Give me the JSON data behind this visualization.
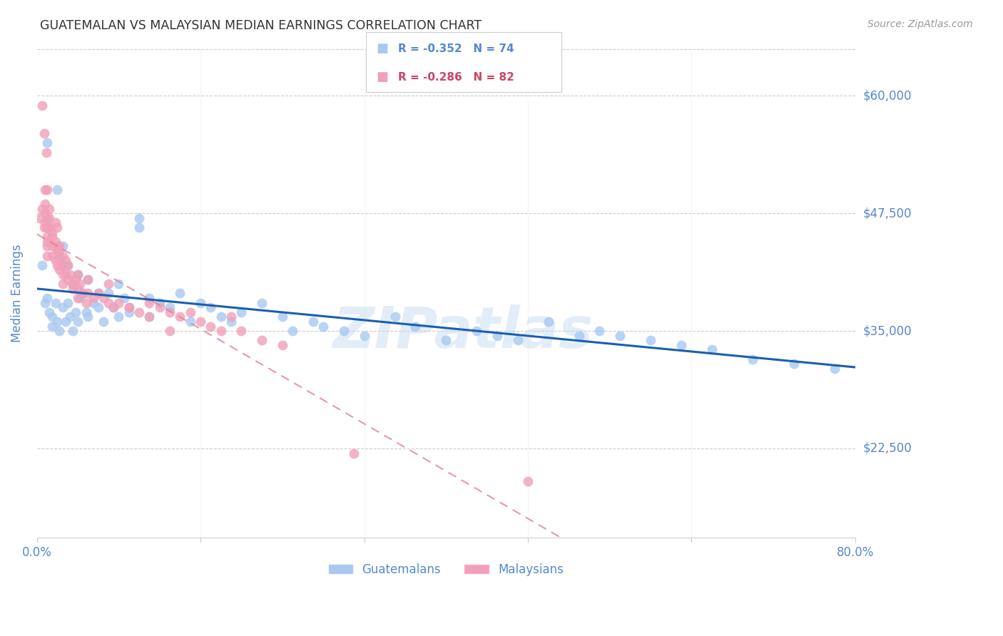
{
  "title": "GUATEMALAN VS MALAYSIAN MEDIAN EARNINGS CORRELATION CHART",
  "source": "Source: ZipAtlas.com",
  "ylabel": "Median Earnings",
  "xlim": [
    0.0,
    0.8
  ],
  "ylim": [
    13000,
    65000
  ],
  "yticks": [
    22500,
    35000,
    47500,
    60000
  ],
  "ytick_labels": [
    "$22,500",
    "$35,000",
    "$47,500",
    "$60,000"
  ],
  "xtick_positions": [
    0.0,
    0.16,
    0.32,
    0.48,
    0.64,
    0.8
  ],
  "xtick_labels": [
    "0.0%",
    "",
    "",
    "",
    "",
    "80.0%"
  ],
  "blue_color": "#A8C8F0",
  "pink_color": "#F0A0B8",
  "line_blue": "#1A5FB0",
  "line_pink": "#E08090",
  "axis_label_color": "#5588CC",
  "grid_color": "#CCCCCC",
  "watermark": "ZIPatlas",
  "legend_r_blue": "R = -0.352",
  "legend_n_blue": "N = 74",
  "legend_r_pink": "R = -0.286",
  "legend_n_pink": "N = 82",
  "guatemalan_x": [
    0.005,
    0.008,
    0.01,
    0.01,
    0.012,
    0.015,
    0.015,
    0.018,
    0.02,
    0.02,
    0.022,
    0.022,
    0.025,
    0.025,
    0.028,
    0.03,
    0.03,
    0.032,
    0.035,
    0.035,
    0.038,
    0.04,
    0.04,
    0.042,
    0.045,
    0.048,
    0.05,
    0.05,
    0.055,
    0.06,
    0.06,
    0.065,
    0.07,
    0.075,
    0.08,
    0.08,
    0.085,
    0.09,
    0.1,
    0.1,
    0.11,
    0.11,
    0.12,
    0.13,
    0.14,
    0.15,
    0.16,
    0.17,
    0.18,
    0.19,
    0.2,
    0.22,
    0.24,
    0.25,
    0.27,
    0.28,
    0.3,
    0.32,
    0.35,
    0.37,
    0.4,
    0.43,
    0.45,
    0.47,
    0.5,
    0.53,
    0.55,
    0.57,
    0.6,
    0.63,
    0.66,
    0.7,
    0.74,
    0.78
  ],
  "guatemalan_y": [
    42000,
    38000,
    55000,
    38500,
    37000,
    36500,
    35500,
    38000,
    50000,
    36000,
    43000,
    35000,
    44000,
    37500,
    36000,
    42000,
    38000,
    36500,
    40000,
    35000,
    37000,
    41000,
    36000,
    38500,
    39000,
    37000,
    40500,
    36500,
    38000,
    39000,
    37500,
    36000,
    39000,
    37500,
    40000,
    36500,
    38500,
    37000,
    47000,
    46000,
    38500,
    36500,
    38000,
    37500,
    39000,
    36000,
    38000,
    37500,
    36500,
    36000,
    37000,
    38000,
    36500,
    35000,
    36000,
    35500,
    35000,
    34500,
    36500,
    35500,
    34000,
    35000,
    34500,
    34000,
    36000,
    34500,
    35000,
    34500,
    34000,
    33500,
    33000,
    32000,
    31500,
    31000
  ],
  "malaysian_x": [
    0.003,
    0.005,
    0.007,
    0.008,
    0.008,
    0.008,
    0.008,
    0.01,
    0.01,
    0.01,
    0.01,
    0.01,
    0.01,
    0.012,
    0.012,
    0.015,
    0.015,
    0.015,
    0.018,
    0.018,
    0.02,
    0.02,
    0.02,
    0.022,
    0.022,
    0.025,
    0.025,
    0.025,
    0.025,
    0.028,
    0.03,
    0.03,
    0.032,
    0.035,
    0.035,
    0.038,
    0.04,
    0.04,
    0.04,
    0.042,
    0.045,
    0.048,
    0.05,
    0.05,
    0.055,
    0.06,
    0.065,
    0.07,
    0.075,
    0.08,
    0.09,
    0.1,
    0.11,
    0.12,
    0.13,
    0.14,
    0.15,
    0.16,
    0.17,
    0.18,
    0.19,
    0.2,
    0.22,
    0.24,
    0.005,
    0.007,
    0.009,
    0.01,
    0.01,
    0.012,
    0.015,
    0.018,
    0.02,
    0.022,
    0.025,
    0.028,
    0.07,
    0.09,
    0.11,
    0.13,
    0.31,
    0.48
  ],
  "malaysian_y": [
    47000,
    48000,
    46000,
    50000,
    48500,
    47500,
    46500,
    47000,
    46000,
    45000,
    44500,
    44000,
    43000,
    48000,
    46000,
    45500,
    44000,
    43000,
    44500,
    42500,
    46000,
    44000,
    42000,
    43500,
    41500,
    43000,
    42000,
    41000,
    40000,
    42500,
    42000,
    40500,
    41000,
    40000,
    39500,
    40500,
    41000,
    39500,
    38500,
    40000,
    39000,
    38000,
    40500,
    39000,
    38500,
    39000,
    38500,
    38000,
    37500,
    38000,
    37500,
    37000,
    38000,
    37500,
    37000,
    36500,
    37000,
    36000,
    35500,
    35000,
    36500,
    35000,
    34000,
    33500,
    59000,
    56000,
    54000,
    50000,
    46000,
    47000,
    45000,
    46500,
    43500,
    44000,
    42000,
    41000,
    40000,
    37500,
    36500,
    35000,
    22000,
    19000
  ]
}
